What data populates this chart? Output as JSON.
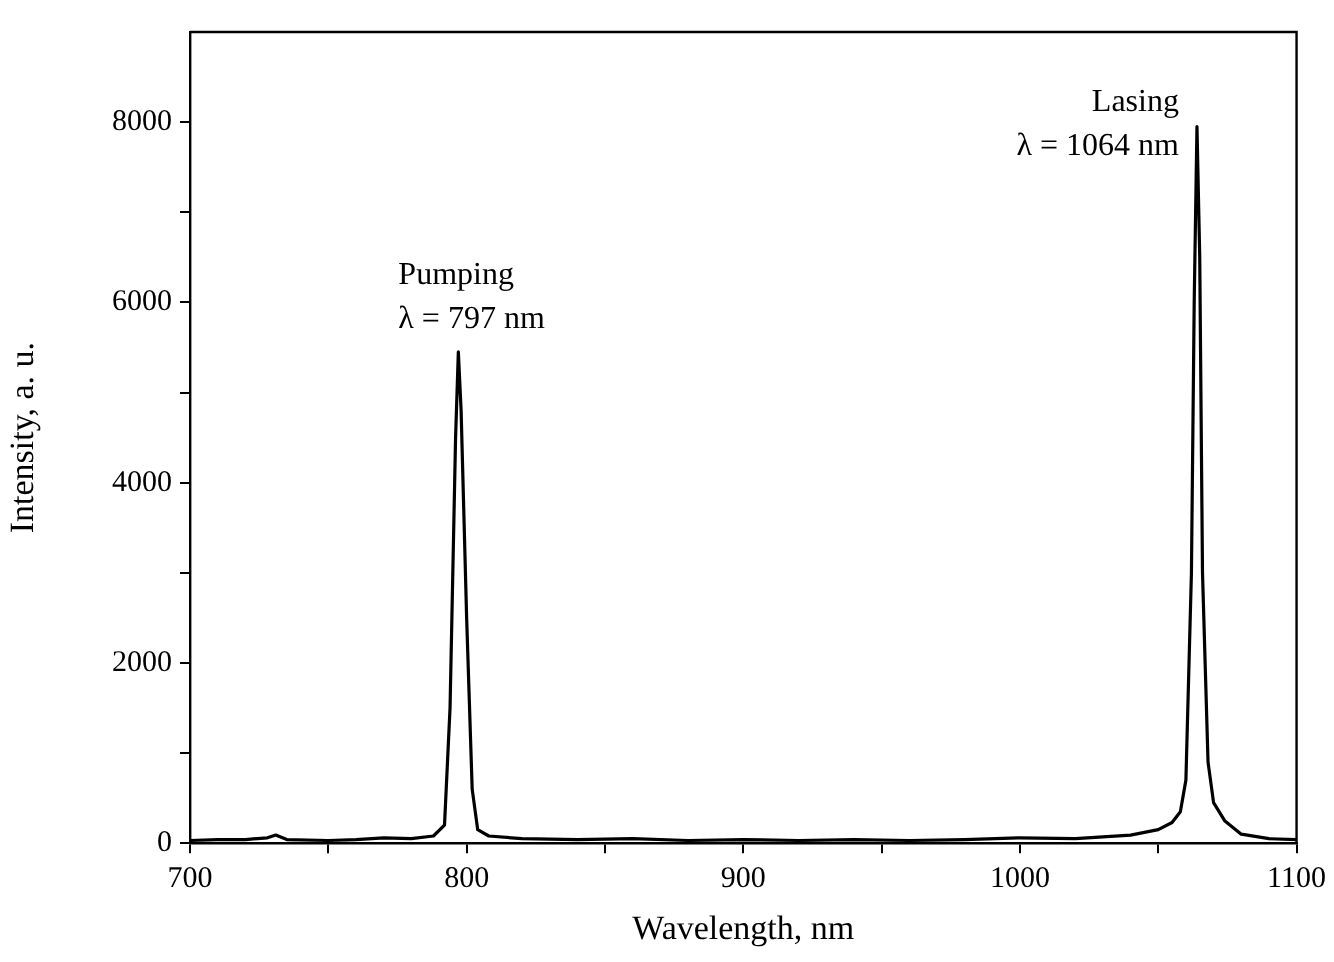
{
  "chart_data": {
    "type": "line",
    "xlabel": "Wavelength, nm",
    "ylabel": "Intensity, a. u.",
    "x": [
      700,
      710,
      720,
      728,
      731,
      735,
      750,
      760,
      770,
      780,
      788,
      792,
      794,
      796,
      797,
      798,
      800,
      802,
      804,
      808,
      820,
      840,
      860,
      880,
      900,
      920,
      940,
      960,
      980,
      1000,
      1020,
      1040,
      1050,
      1055,
      1058,
      1060,
      1062,
      1063,
      1064,
      1065,
      1066,
      1068,
      1070,
      1074,
      1080,
      1090,
      1100
    ],
    "series": [
      {
        "color": "#000000",
        "values": [
          30,
          40,
          40,
          60,
          90,
          40,
          30,
          40,
          60,
          50,
          80,
          200,
          1500,
          4500,
          5450,
          4800,
          2500,
          600,
          150,
          80,
          50,
          40,
          50,
          30,
          40,
          30,
          40,
          30,
          40,
          60,
          50,
          90,
          150,
          230,
          350,
          700,
          3000,
          6000,
          7950,
          6500,
          3000,
          900,
          450,
          250,
          100,
          50,
          40
        ]
      }
    ],
    "xlim": [
      700,
      1100
    ],
    "xticks": [
      700,
      {
        "value": 750,
        "label": null
      },
      800,
      {
        "value": 850,
        "label": null
      },
      900,
      {
        "value": 950,
        "label": null
      },
      1000,
      {
        "value": 1050,
        "label": null
      },
      1100
    ],
    "ylim": [
      0,
      9000
    ],
    "yticks": [
      0,
      {
        "value": 1000,
        "label": null
      },
      2000,
      {
        "value": 3000,
        "label": null
      },
      4000,
      {
        "value": 5000,
        "label": null
      },
      6000,
      {
        "value": 7000,
        "label": null
      },
      8000
    ],
    "annotations": [
      {
        "text": "Pumping\nλ = 797 nm",
        "x": 797,
        "y": 5450
      },
      {
        "text": "Lasing\nλ = 1064 nm",
        "x": 1064,
        "y": 7950
      }
    ],
    "grid": false,
    "legend": false,
    "marker": "none",
    "line_style": "solid"
  }
}
